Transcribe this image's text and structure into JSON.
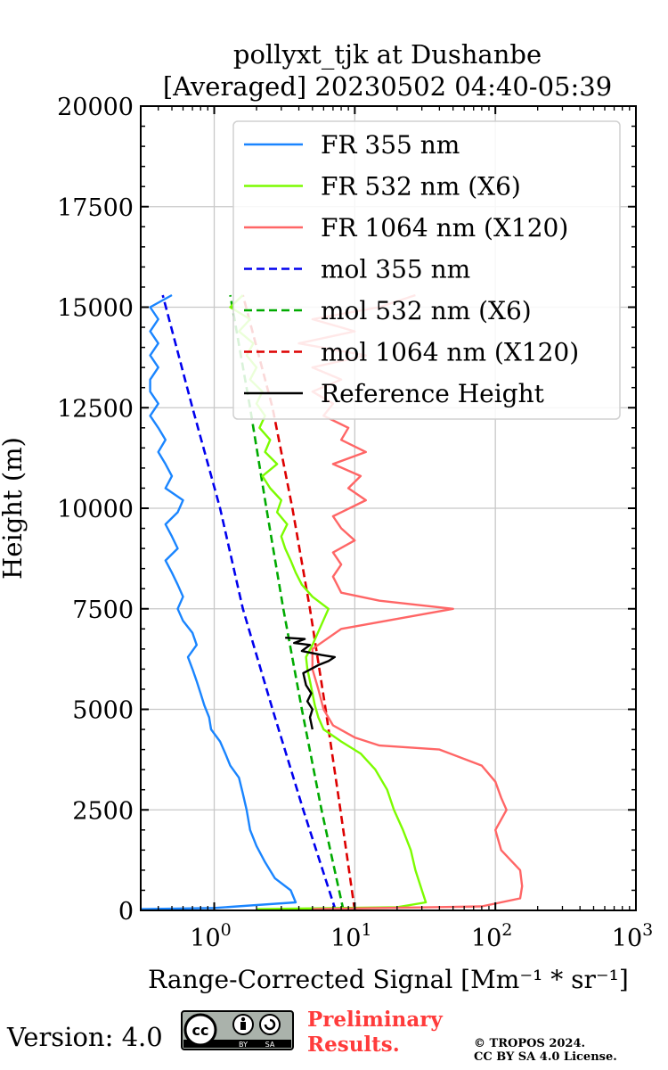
{
  "chart_data": {
    "type": "line",
    "title": [
      "pollyxt_tjk at Dushanbe",
      "[Averaged] 20230502 04:40-05:39"
    ],
    "xlabel": "Range-Corrected Signal [Mm⁻¹ * sr⁻¹]",
    "ylabel": "Height (m)",
    "xscale": "log",
    "xlim": [
      0.3,
      1000
    ],
    "ylim": [
      0,
      20000
    ],
    "xticks": [
      {
        "v": 1,
        "base": "10",
        "exp": "0"
      },
      {
        "v": 10,
        "base": "10",
        "exp": "1"
      },
      {
        "v": 100,
        "base": "10",
        "exp": "2"
      },
      {
        "v": 1000,
        "base": "10",
        "exp": "3"
      }
    ],
    "yticks": [
      0,
      2500,
      5000,
      7500,
      10000,
      12500,
      15000,
      17500,
      20000
    ],
    "grid": true,
    "legend_position": "upper-right",
    "series": [
      {
        "name": "FR 355 nm",
        "color": "#1a85ff",
        "dash": false,
        "points": [
          [
            0.3,
            30
          ],
          [
            1.0,
            60
          ],
          [
            3.8,
            200
          ],
          [
            3.5,
            500
          ],
          [
            2.7,
            800
          ],
          [
            2.3,
            1200
          ],
          [
            2.0,
            1600
          ],
          [
            1.8,
            2000
          ],
          [
            1.7,
            2500
          ],
          [
            1.6,
            2900
          ],
          [
            1.5,
            3300
          ],
          [
            1.3,
            3600
          ],
          [
            1.2,
            3900
          ],
          [
            1.1,
            4200
          ],
          [
            0.95,
            4500
          ],
          [
            0.92,
            4800
          ],
          [
            0.85,
            5100
          ],
          [
            0.8,
            5400
          ],
          [
            0.75,
            5700
          ],
          [
            0.7,
            6000
          ],
          [
            0.65,
            6300
          ],
          [
            0.75,
            6600
          ],
          [
            0.7,
            6900
          ],
          [
            0.6,
            7200
          ],
          [
            0.55,
            7500
          ],
          [
            0.6,
            7800
          ],
          [
            0.55,
            8100
          ],
          [
            0.5,
            8400
          ],
          [
            0.45,
            8700
          ],
          [
            0.55,
            9000
          ],
          [
            0.5,
            9300
          ],
          [
            0.45,
            9600
          ],
          [
            0.55,
            9900
          ],
          [
            0.6,
            10200
          ],
          [
            0.45,
            10500
          ],
          [
            0.5,
            10800
          ],
          [
            0.45,
            11100
          ],
          [
            0.4,
            11400
          ],
          [
            0.45,
            11700
          ],
          [
            0.4,
            12000
          ],
          [
            0.35,
            12300
          ],
          [
            0.4,
            12600
          ],
          [
            0.35,
            12900
          ],
          [
            0.35,
            13200
          ],
          [
            0.4,
            13500
          ],
          [
            0.35,
            13800
          ],
          [
            0.4,
            14100
          ],
          [
            0.35,
            14400
          ],
          [
            0.4,
            14700
          ],
          [
            0.35,
            15000
          ],
          [
            0.5,
            15300
          ]
        ]
      },
      {
        "name": "FR 532 nm (X6)",
        "color": "#7cfc00",
        "dash": false,
        "points": [
          [
            2,
            30
          ],
          [
            20,
            80
          ],
          [
            32,
            200
          ],
          [
            30,
            500
          ],
          [
            27,
            1000
          ],
          [
            25,
            1500
          ],
          [
            22,
            2000
          ],
          [
            19,
            2500
          ],
          [
            17,
            3000
          ],
          [
            14,
            3500
          ],
          [
            11,
            3900
          ],
          [
            8,
            4200
          ],
          [
            6,
            4500
          ],
          [
            5.5,
            4800
          ],
          [
            5.2,
            5100
          ],
          [
            5,
            5400
          ],
          [
            4.8,
            5700
          ],
          [
            4.6,
            6000
          ],
          [
            4.5,
            6300
          ],
          [
            5,
            6600
          ],
          [
            6.5,
            7500
          ],
          [
            5,
            7800
          ],
          [
            4.2,
            8100
          ],
          [
            3.8,
            8400
          ],
          [
            3.5,
            8700
          ],
          [
            3.2,
            9000
          ],
          [
            3,
            9300
          ],
          [
            3.3,
            9600
          ],
          [
            2.8,
            9900
          ],
          [
            3,
            10200
          ],
          [
            2.5,
            10500
          ],
          [
            2.2,
            10800
          ],
          [
            2.8,
            11100
          ],
          [
            2.3,
            11400
          ],
          [
            2.5,
            11700
          ],
          [
            2.1,
            12000
          ],
          [
            2.3,
            12300
          ],
          [
            2.0,
            12600
          ],
          [
            2.2,
            12900
          ],
          [
            1.8,
            13200
          ],
          [
            2.0,
            13500
          ],
          [
            1.7,
            13800
          ],
          [
            1.9,
            14100
          ],
          [
            1.5,
            14400
          ],
          [
            1.8,
            14700
          ],
          [
            1.3,
            15000
          ],
          [
            1.6,
            15300
          ]
        ]
      },
      {
        "name": "FR 1064 nm (X120)",
        "color": "#ff6666",
        "dash": false,
        "points": [
          [
            5,
            30
          ],
          [
            80,
            100
          ],
          [
            150,
            300
          ],
          [
            155,
            600
          ],
          [
            150,
            1000
          ],
          [
            110,
            1500
          ],
          [
            100,
            2000
          ],
          [
            120,
            2500
          ],
          [
            110,
            2800
          ],
          [
            100,
            3200
          ],
          [
            80,
            3600
          ],
          [
            40,
            4000
          ],
          [
            15,
            4100
          ],
          [
            10,
            4300
          ],
          [
            7,
            4600
          ],
          [
            6,
            5000
          ],
          [
            5.5,
            5500
          ],
          [
            5,
            6000
          ],
          [
            5,
            6500
          ],
          [
            8,
            7000
          ],
          [
            50,
            7500
          ],
          [
            15,
            7700
          ],
          [
            8,
            7900
          ],
          [
            7,
            8300
          ],
          [
            8,
            8600
          ],
          [
            7,
            8900
          ],
          [
            10,
            9200
          ],
          [
            8,
            9500
          ],
          [
            7,
            9800
          ],
          [
            12,
            10200
          ],
          [
            9,
            10500
          ],
          [
            11,
            10800
          ],
          [
            7,
            11100
          ],
          [
            12,
            11400
          ],
          [
            8,
            11700
          ],
          [
            9,
            12000
          ],
          [
            6,
            12300
          ],
          [
            7,
            12600
          ],
          [
            5,
            12900
          ],
          [
            8,
            13200
          ],
          [
            5,
            13500
          ],
          [
            12,
            13800
          ],
          [
            4,
            14100
          ],
          [
            10,
            14400
          ],
          [
            5,
            14700
          ],
          [
            15,
            15000
          ],
          [
            27,
            15300
          ]
        ]
      },
      {
        "name": "mol 355 nm",
        "color": "#0000ee",
        "dash": true,
        "points": [
          [
            7.3,
            0
          ],
          [
            4.3,
            2500
          ],
          [
            2.6,
            5000
          ],
          [
            1.6,
            7500
          ],
          [
            1.1,
            10000
          ],
          [
            0.7,
            12500
          ],
          [
            0.43,
            15300
          ]
        ]
      },
      {
        "name": "mol 532 nm (X6)",
        "color": "#00aa00",
        "dash": true,
        "points": [
          [
            8.3,
            0
          ],
          [
            5.8,
            2500
          ],
          [
            4.2,
            5000
          ],
          [
            3.1,
            7500
          ],
          [
            2.35,
            10000
          ],
          [
            1.8,
            12500
          ],
          [
            1.3,
            15300
          ]
        ]
      },
      {
        "name": "mol 1064 nm (X120)",
        "color": "#dd0000",
        "dash": true,
        "points": [
          [
            10,
            0
          ],
          [
            7.9,
            2500
          ],
          [
            6.2,
            5000
          ],
          [
            4.8,
            7500
          ],
          [
            3.6,
            10000
          ],
          [
            2.6,
            12500
          ],
          [
            1.6,
            15300
          ]
        ]
      },
      {
        "name": "Reference Height",
        "color": "#000000",
        "dash": false,
        "points": [
          [
            5,
            4500
          ],
          [
            4.8,
            4800
          ],
          [
            5,
            5000
          ],
          [
            4.6,
            5200
          ],
          [
            4.9,
            5400
          ],
          [
            4.5,
            5600
          ],
          [
            4.3,
            5900
          ],
          [
            5.5,
            6100
          ],
          [
            6.5,
            6200
          ],
          [
            7.2,
            6300
          ],
          [
            5.8,
            6350
          ],
          [
            4.2,
            6450
          ],
          [
            4.8,
            6600
          ],
          [
            3.7,
            6650
          ],
          [
            4.4,
            6750
          ],
          [
            3.2,
            6780
          ]
        ]
      }
    ]
  },
  "footer": {
    "version": "Version: 4.0",
    "badge": [
      "cc",
      "BY",
      "SA"
    ],
    "preliminary": [
      "Preliminary",
      "Results."
    ],
    "copyright": [
      "© TROPOS 2024.",
      "CC BY SA 4.0 License."
    ]
  }
}
